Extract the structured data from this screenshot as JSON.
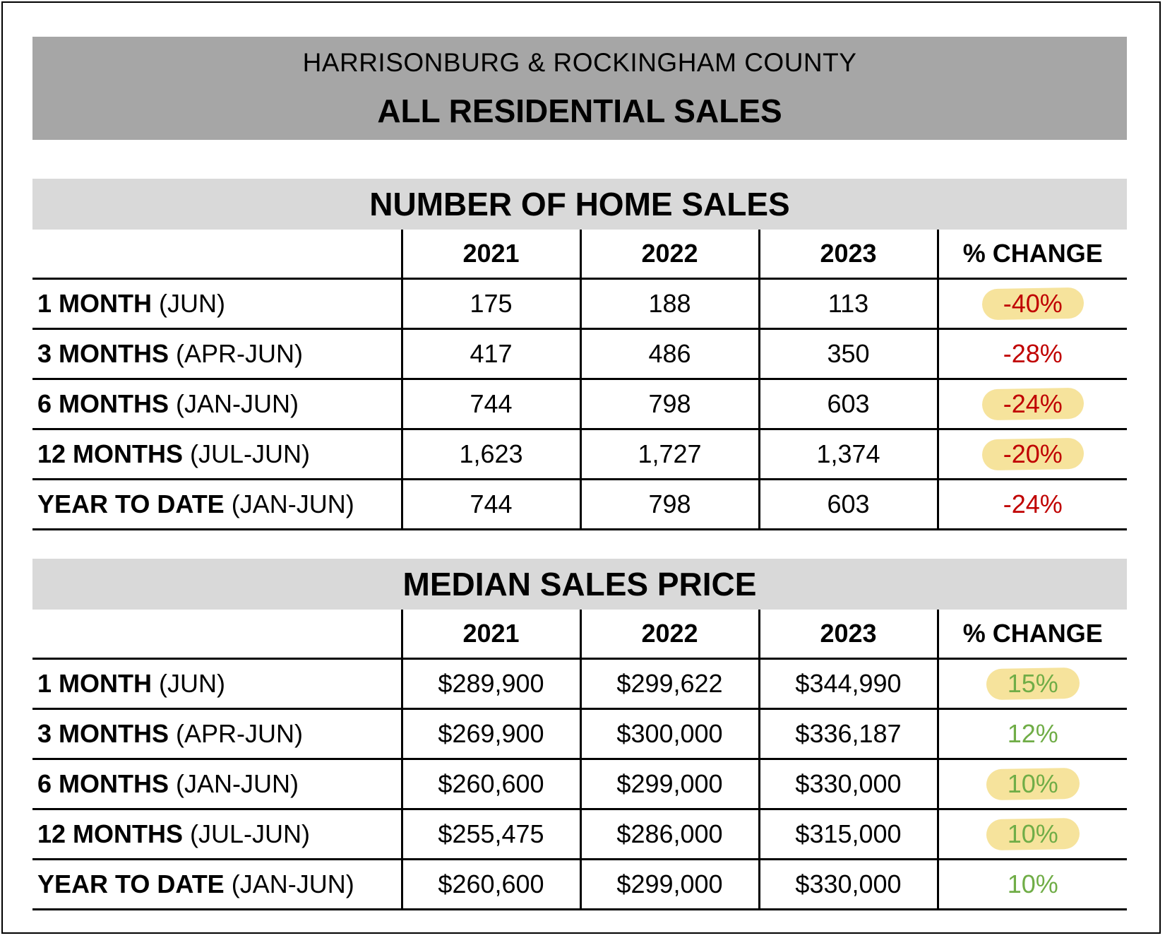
{
  "header": {
    "subtitle": "HARRISONBURG & ROCKINGHAM COUNTY",
    "title": "ALL RESIDENTIAL SALES"
  },
  "colors": {
    "negative": "#c00000",
    "positive": "#70ad47",
    "highlight": "#f6e39c"
  },
  "home_sales": {
    "heading": "NUMBER OF HOME SALES",
    "columns": [
      "2021",
      "2022",
      "2023",
      "% CHANGE"
    ],
    "rows": [
      {
        "label_bold": "1 MONTH",
        "label_rest": " (JUN)",
        "v2021": "175",
        "v2022": "188",
        "v2023": "113",
        "change": "-40%",
        "highlighted": true
      },
      {
        "label_bold": "3 MONTHS",
        "label_rest": " (APR-JUN)",
        "v2021": "417",
        "v2022": "486",
        "v2023": "350",
        "change": "-28%",
        "highlighted": false
      },
      {
        "label_bold": "6 MONTHS",
        "label_rest": " (JAN-JUN)",
        "v2021": "744",
        "v2022": "798",
        "v2023": "603",
        "change": "-24%",
        "highlighted": true
      },
      {
        "label_bold": "12 MONTHS",
        "label_rest": " (JUL-JUN)",
        "v2021": "1,623",
        "v2022": "1,727",
        "v2023": "1,374",
        "change": "-20%",
        "highlighted": true
      },
      {
        "label_bold": "YEAR TO DATE",
        "label_rest": " (JAN-JUN)",
        "v2021": "744",
        "v2022": "798",
        "v2023": "603",
        "change": "-24%",
        "highlighted": false
      }
    ]
  },
  "median_price": {
    "heading": "MEDIAN SALES PRICE",
    "columns": [
      "2021",
      "2022",
      "2023",
      "% CHANGE"
    ],
    "rows": [
      {
        "label_bold": "1 MONTH",
        "label_rest": " (JUN)",
        "v2021": "$289,900",
        "v2022": "$299,622",
        "v2023": "$344,990",
        "change": "15%",
        "highlighted": true
      },
      {
        "label_bold": "3 MONTHS",
        "label_rest": " (APR-JUN)",
        "v2021": "$269,900",
        "v2022": "$300,000",
        "v2023": "$336,187",
        "change": "12%",
        "highlighted": false
      },
      {
        "label_bold": "6 MONTHS",
        "label_rest": " (JAN-JUN)",
        "v2021": "$260,600",
        "v2022": "$299,000",
        "v2023": "$330,000",
        "change": "10%",
        "highlighted": true
      },
      {
        "label_bold": "12 MONTHS",
        "label_rest": " (JUL-JUN)",
        "v2021": "$255,475",
        "v2022": "$286,000",
        "v2023": "$315,000",
        "change": "10%",
        "highlighted": true
      },
      {
        "label_bold": "YEAR TO DATE",
        "label_rest": " (JAN-JUN)",
        "v2021": "$260,600",
        "v2022": "$299,000",
        "v2023": "$330,000",
        "change": "10%",
        "highlighted": false
      }
    ]
  }
}
